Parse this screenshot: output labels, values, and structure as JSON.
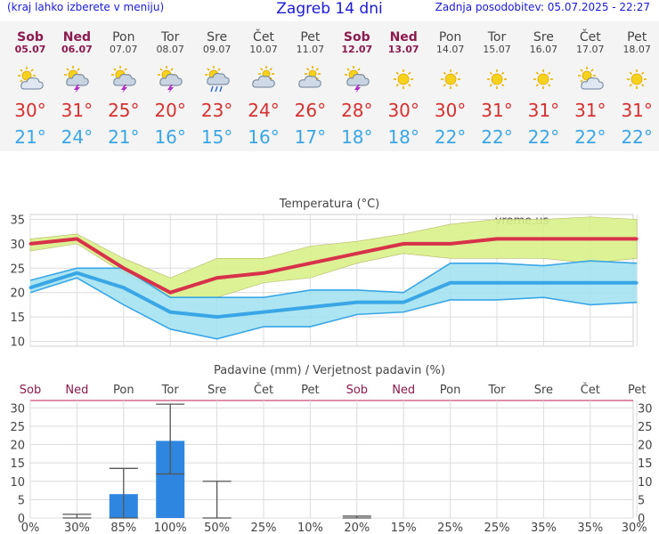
{
  "header": {
    "menu_hint": "(kraj lahko izberete v meniju)",
    "title": "Zagreb 14 dni",
    "updated": "Zadnja posodobitev: 05.07.2025 - 22:27"
  },
  "days": [
    {
      "name": "Sob",
      "date": "05.07",
      "weekend": true,
      "icon": "partly-cloudy-icon",
      "tmax": "30°",
      "tmin": "21°"
    },
    {
      "name": "Ned",
      "date": "06.07",
      "weekend": true,
      "icon": "thunderstorm-icon",
      "tmax": "31°",
      "tmin": "24°"
    },
    {
      "name": "Pon",
      "date": "07.07",
      "weekend": false,
      "icon": "thunderstorm-icon",
      "tmax": "25°",
      "tmin": "21°"
    },
    {
      "name": "Tor",
      "date": "08.07",
      "weekend": false,
      "icon": "thunderstorm-icon",
      "tmax": "20°",
      "tmin": "16°"
    },
    {
      "name": "Sre",
      "date": "09.07",
      "weekend": false,
      "icon": "rain-showers-icon",
      "tmax": "23°",
      "tmin": "15°"
    },
    {
      "name": "Čet",
      "date": "10.07",
      "weekend": false,
      "icon": "cloudy-icon",
      "tmax": "24°",
      "tmin": "16°"
    },
    {
      "name": "Pet",
      "date": "11.07",
      "weekend": false,
      "icon": "cloudy-icon",
      "tmax": "26°",
      "tmin": "17°"
    },
    {
      "name": "Sob",
      "date": "12.07",
      "weekend": true,
      "icon": "thunderstorm-icon",
      "tmax": "28°",
      "tmin": "18°"
    },
    {
      "name": "Ned",
      "date": "13.07",
      "weekend": true,
      "icon": "sunny-icon",
      "tmax": "30°",
      "tmin": "18°"
    },
    {
      "name": "Pon",
      "date": "14.07",
      "weekend": false,
      "icon": "sunny-icon",
      "tmax": "30°",
      "tmin": "22°"
    },
    {
      "name": "Tor",
      "date": "15.07",
      "weekend": false,
      "icon": "sunny-icon",
      "tmax": "31°",
      "tmin": "22°"
    },
    {
      "name": "Sre",
      "date": "16.07",
      "weekend": false,
      "icon": "sunny-icon",
      "tmax": "31°",
      "tmin": "22°"
    },
    {
      "name": "Čet",
      "date": "17.07",
      "weekend": false,
      "icon": "partly-cloudy-icon",
      "tmax": "31°",
      "tmin": "22°"
    },
    {
      "name": "Pet",
      "date": "18.07",
      "weekend": false,
      "icon": "sunny-icon",
      "tmax": "31°",
      "tmin": "22°"
    }
  ],
  "colors": {
    "max_line": "#d8324a",
    "max_band": "#d9f08a",
    "min_line": "#3aa6e6",
    "min_band": "#9fe2f0",
    "bar": "#2f86e0",
    "weekend": "#8b1a4e"
  },
  "chart_data": [
    {
      "type": "line",
      "title": "Temperatura (°C)",
      "watermark": "vreme.us",
      "categories": [
        "Sob",
        "Ned",
        "Pon",
        "Tor",
        "Sre",
        "Čet",
        "Pet",
        "Sob",
        "Ned",
        "Pon",
        "Tor",
        "Sre",
        "Čet",
        "Pet"
      ],
      "ylim": [
        9,
        36
      ],
      "yticks": [
        10,
        15,
        20,
        25,
        30,
        35
      ],
      "grid": true,
      "series": [
        {
          "values": [
            30,
            31,
            25,
            20,
            23,
            24,
            26,
            28,
            30,
            30,
            31,
            31,
            31,
            31
          ],
          "band_high": [
            31,
            32,
            27,
            23,
            27,
            27,
            29.5,
            30.5,
            32,
            34,
            35,
            35,
            35.5,
            35
          ],
          "band_low": [
            28.5,
            30,
            24,
            19,
            19,
            22,
            23,
            26,
            28,
            27,
            27,
            27,
            26,
            27
          ]
        },
        {
          "values": [
            21,
            24,
            21,
            16,
            15,
            16,
            17,
            18,
            18,
            22,
            22,
            22,
            22,
            22
          ],
          "band_high": [
            22.5,
            25,
            25,
            19,
            19,
            19,
            20.5,
            20.5,
            20,
            26,
            26,
            25.5,
            26.5,
            26
          ],
          "band_low": [
            20,
            23,
            17.5,
            12.5,
            10.5,
            13,
            13,
            15.5,
            16,
            18.5,
            18.5,
            19,
            17.5,
            18
          ]
        }
      ]
    },
    {
      "type": "bar",
      "title": "Padavine (mm) / Verjetnost padavin (%)",
      "categories": [
        "Sob",
        "Ned",
        "Pon",
        "Tor",
        "Sre",
        "Čet",
        "Pet",
        "Sob",
        "Ned",
        "Pon",
        "Tor",
        "Sre",
        "Čet",
        "Pet"
      ],
      "ylim": [
        0,
        32
      ],
      "yticks": [
        0,
        5,
        10,
        15,
        20,
        25,
        30
      ],
      "values": [
        0,
        0,
        6.5,
        21,
        0,
        0,
        0,
        0,
        0,
        0,
        0,
        0,
        0,
        0
      ],
      "error_low": [
        null,
        0,
        0,
        12,
        0,
        null,
        null,
        0,
        null,
        null,
        null,
        null,
        null,
        null
      ],
      "error_high": [
        null,
        1,
        13.5,
        31,
        10,
        null,
        null,
        0.5,
        null,
        null,
        null,
        null,
        null,
        null
      ],
      "probability": [
        "0%",
        "30%",
        "85%",
        "100%",
        "50%",
        "25%",
        "10%",
        "20%",
        "15%",
        "25%",
        "25%",
        "35%",
        "35%",
        "30%"
      ]
    }
  ]
}
